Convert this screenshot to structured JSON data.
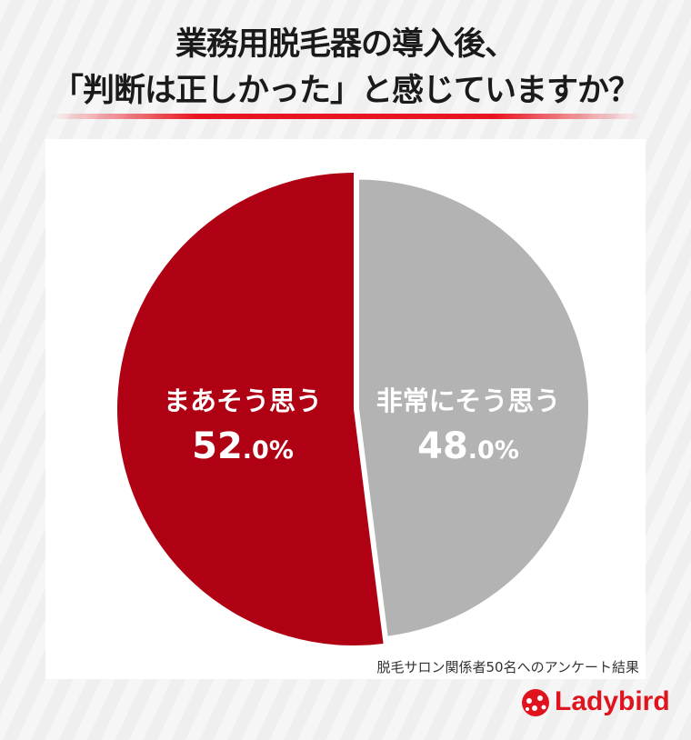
{
  "title_line1": "業務用脱毛器の導入後、",
  "title_line2": "「判断は正しかった」と感じていますか？",
  "chart_data": {
    "type": "pie",
    "title": "業務用脱毛器の導入後、「判断は正しかった」と感じていますか？",
    "slices": [
      {
        "name": "非常にそう思う",
        "value": 48.0,
        "label_main": "48",
        "label_dec": ".0%",
        "color": "#b3b3b3"
      },
      {
        "name": "まあそう思う",
        "value": 52.0,
        "label_main": "52",
        "label_dec": ".0%",
        "color": "#b00013"
      }
    ],
    "start": "top",
    "direction": "clockwise"
  },
  "note": "脱毛サロン関係者50名へのアンケート結果",
  "logo": "Ladybird",
  "colors": {
    "accent": "#e8141f"
  }
}
